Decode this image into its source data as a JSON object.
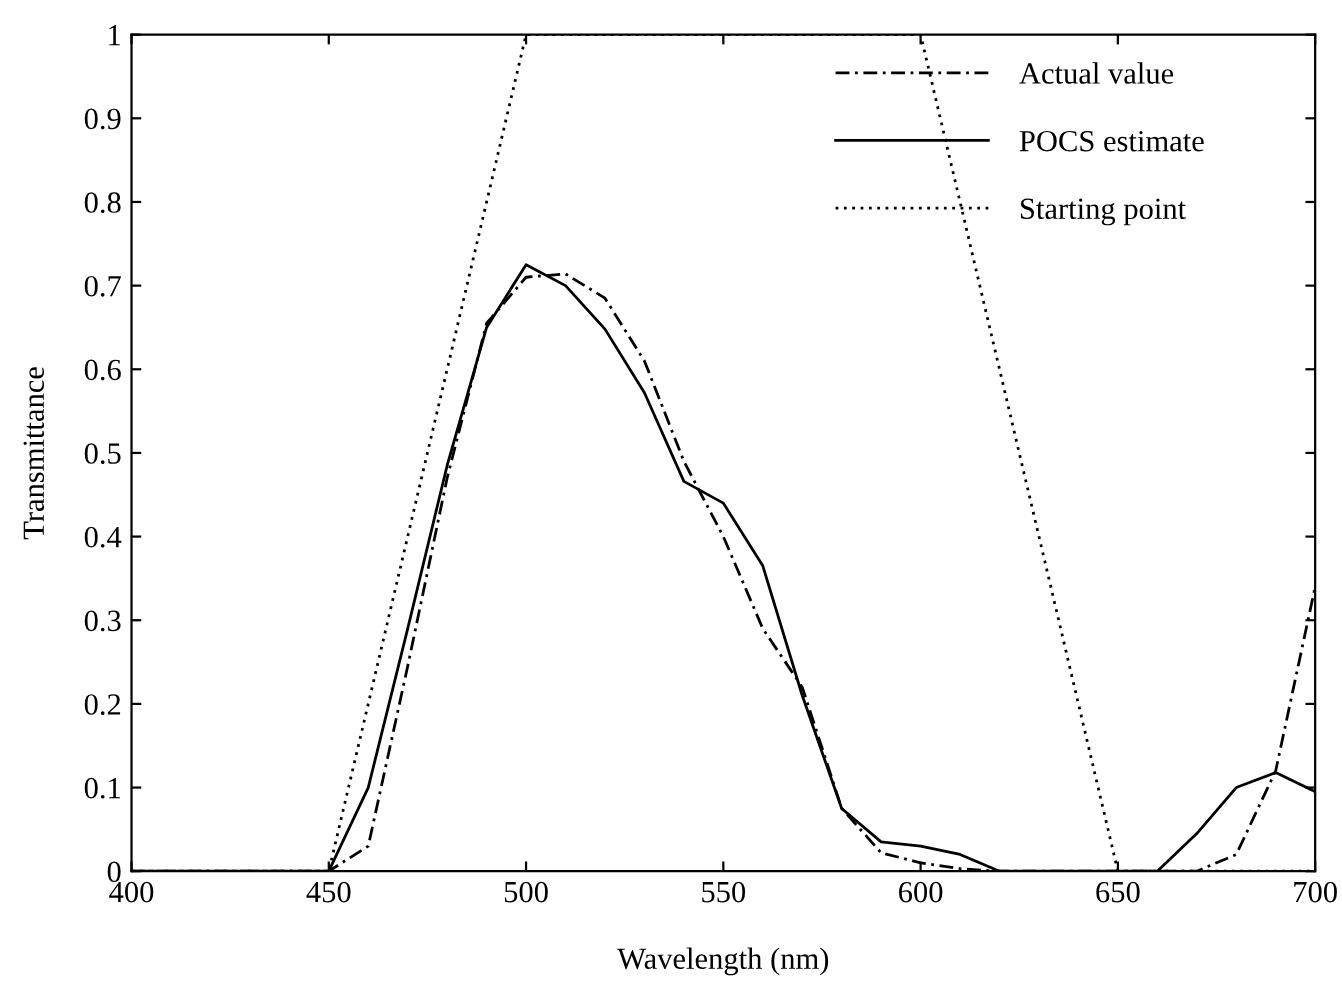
{
  "chart_data": {
    "type": "line",
    "xlabel": "Wavelength (nm)",
    "ylabel": "Transmittance",
    "series": [
      {
        "name": "Actual value",
        "color": "#000000",
        "line_style": "dashdot",
        "x": [
          400,
          410,
          420,
          430,
          440,
          450,
          460,
          470,
          480,
          490,
          500,
          510,
          520,
          530,
          540,
          550,
          560,
          570,
          580,
          590,
          600,
          610,
          620,
          630,
          640,
          650,
          660,
          670,
          680,
          690,
          700
        ],
        "values": [
          0,
          0,
          0,
          0,
          0,
          0,
          0.03,
          0.245,
          0.47,
          0.655,
          0.71,
          0.714,
          0.685,
          0.61,
          0.49,
          0.4,
          0.29,
          0.22,
          0.075,
          0.022,
          0.01,
          0.003,
          0,
          0,
          0,
          0,
          0,
          0,
          0.02,
          0.12,
          0.34
        ]
      },
      {
        "name": "POCS estimate",
        "color": "#000000",
        "line_style": "solid",
        "x": [
          400,
          410,
          420,
          430,
          440,
          450,
          460,
          470,
          480,
          490,
          500,
          510,
          520,
          530,
          540,
          550,
          560,
          570,
          580,
          590,
          600,
          610,
          620,
          630,
          640,
          650,
          660,
          670,
          680,
          690,
          700
        ],
        "values": [
          0,
          0,
          0,
          0,
          0,
          0,
          0.1,
          0.29,
          0.485,
          0.65,
          0.725,
          0.7,
          0.648,
          0.572,
          0.466,
          0.44,
          0.365,
          0.21,
          0.075,
          0.035,
          0.03,
          0.02,
          0,
          0,
          0,
          0,
          0,
          0.045,
          0.1,
          0.118,
          0.095
        ]
      },
      {
        "name": "Starting point",
        "color": "#000000",
        "line_style": "dotted",
        "x": [
          400,
          450,
          500,
          600,
          650,
          700
        ],
        "values": [
          0,
          0,
          1,
          1,
          0,
          0
        ]
      }
    ],
    "xlim": [
      400,
      700
    ],
    "ylim": [
      0,
      1
    ],
    "xticks": [
      400,
      450,
      500,
      550,
      600,
      650,
      700
    ],
    "yticks": [
      0,
      0.1,
      0.2,
      0.3,
      0.4,
      0.5,
      0.6,
      0.7,
      0.8,
      0.9,
      1
    ],
    "grid": false,
    "legend": "top right",
    "marker": "none"
  }
}
